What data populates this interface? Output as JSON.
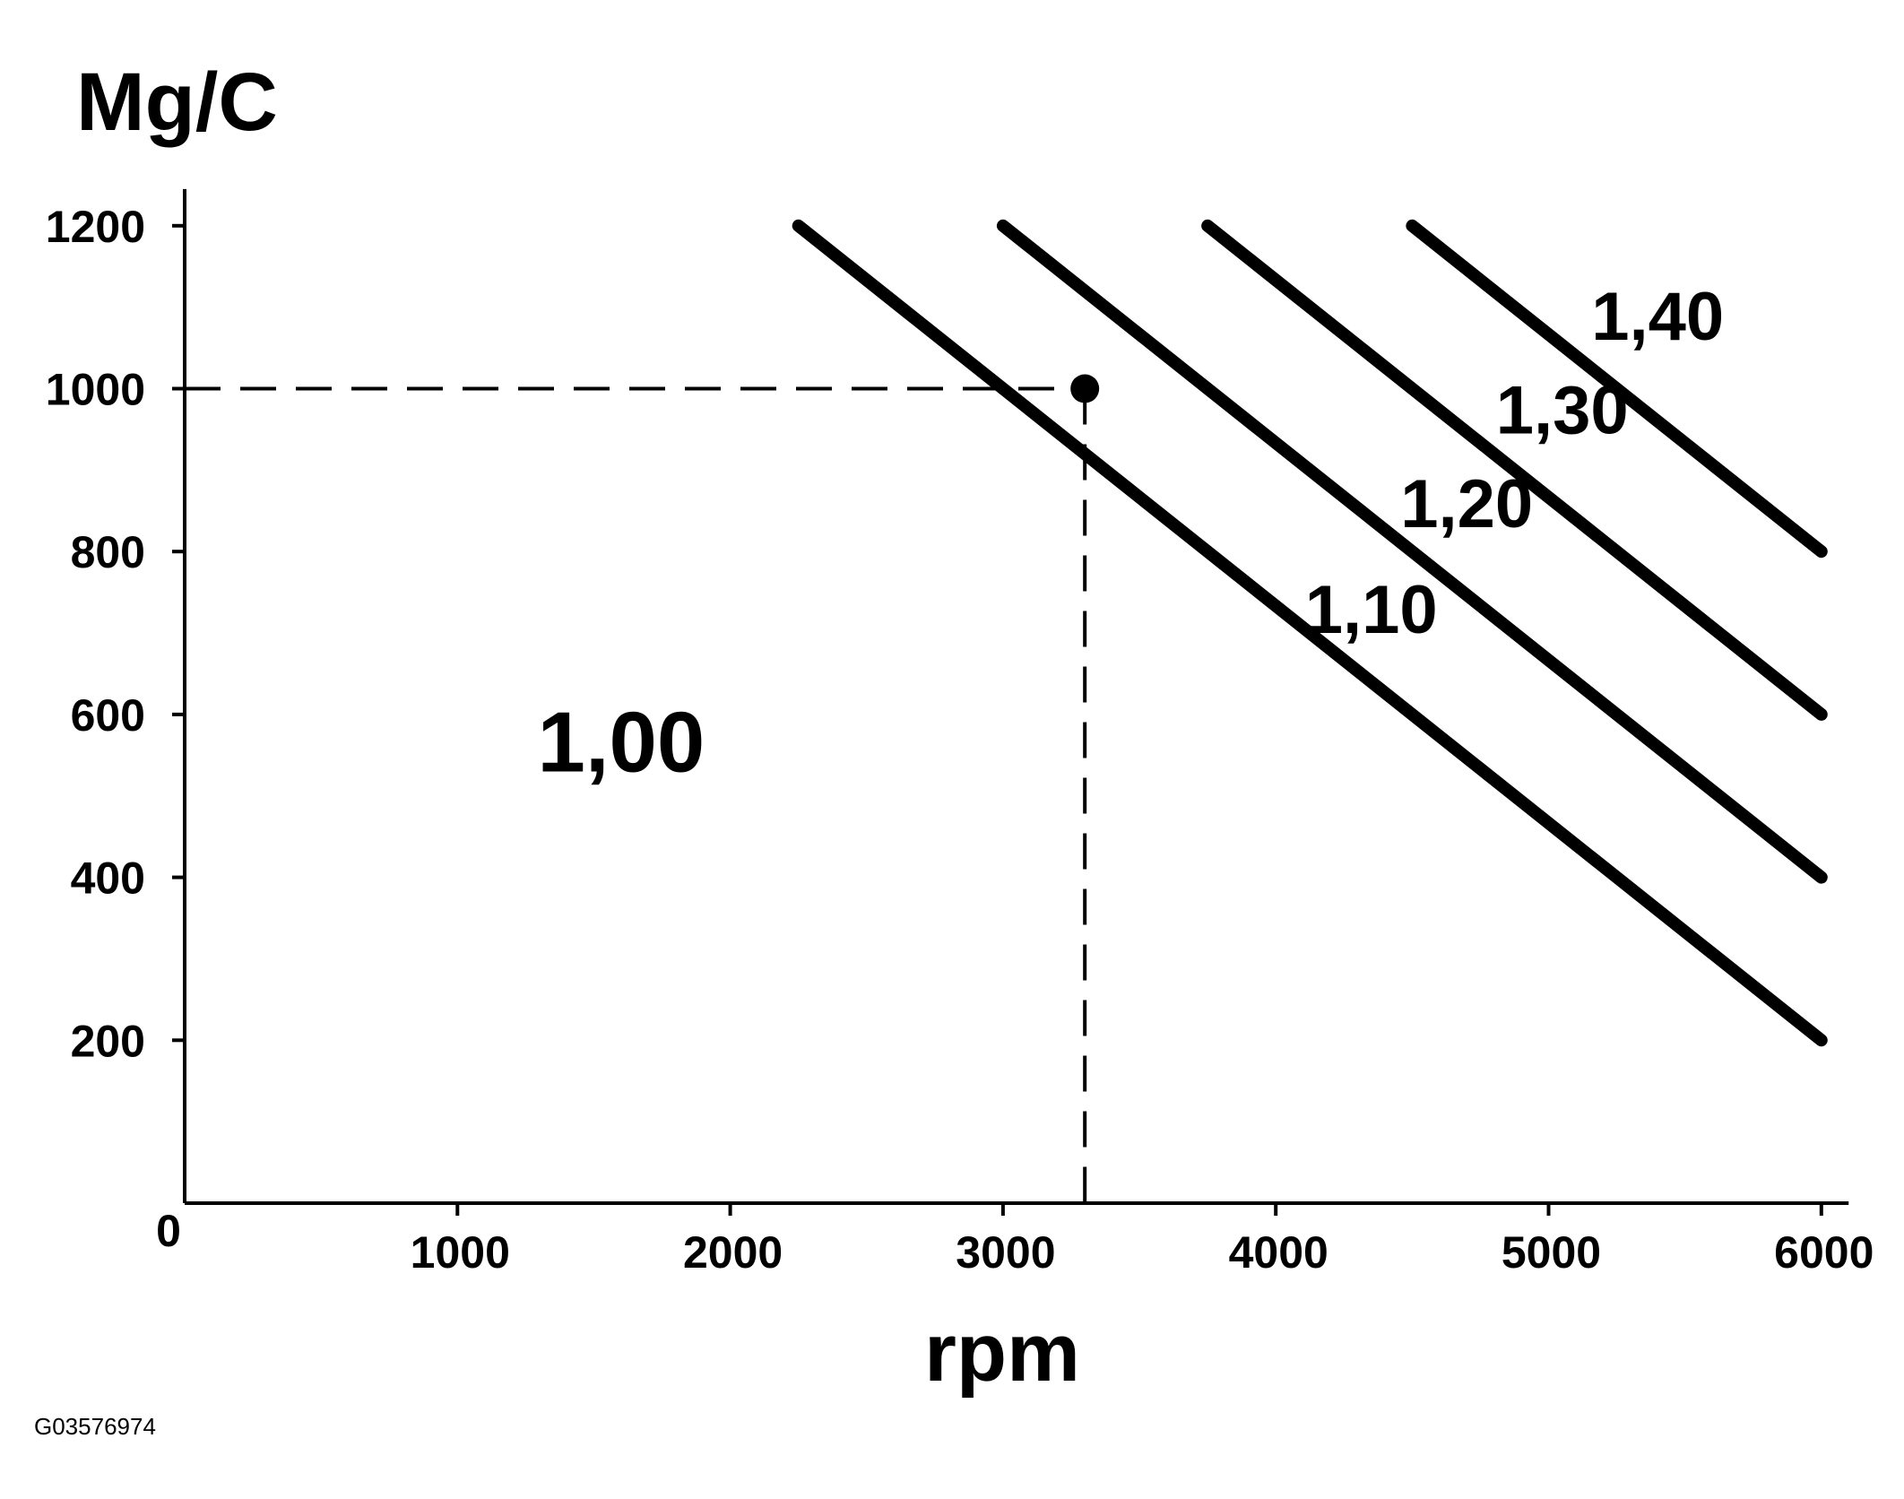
{
  "chart_data": {
    "type": "line",
    "title": "",
    "ylabel": "Mg/C",
    "xlabel": "rpm",
    "xlim": [
      0,
      6100
    ],
    "ylim": [
      0,
      1245
    ],
    "origin_label": "0",
    "x_ticks": [
      1000,
      2000,
      3000,
      4000,
      5000,
      6000
    ],
    "y_ticks": [
      200,
      400,
      600,
      800,
      1000,
      1200
    ],
    "grid": false,
    "region_label": {
      "text": "1,00",
      "x": 1600,
      "y": 530
    },
    "series": [
      {
        "name": "1,10",
        "points": [
          [
            2250,
            1200
          ],
          [
            6000,
            200
          ]
        ],
        "label_at": [
          4350,
          700
        ]
      },
      {
        "name": "1,20",
        "points": [
          [
            3000,
            1200
          ],
          [
            6000,
            400
          ]
        ],
        "label_at": [
          4700,
          830
        ]
      },
      {
        "name": "1,30",
        "points": [
          [
            3750,
            1200
          ],
          [
            6000,
            600
          ]
        ],
        "label_at": [
          5050,
          945
        ]
      },
      {
        "name": "1,40",
        "points": [
          [
            4500,
            1200
          ],
          [
            6000,
            800
          ]
        ],
        "label_at": [
          5400,
          1060
        ]
      }
    ],
    "marker": {
      "x": 3300,
      "y": 1000
    },
    "reference_lines": {
      "style": "dashed",
      "x": 3300,
      "y": 1000
    }
  },
  "figure_id": "G03576974"
}
